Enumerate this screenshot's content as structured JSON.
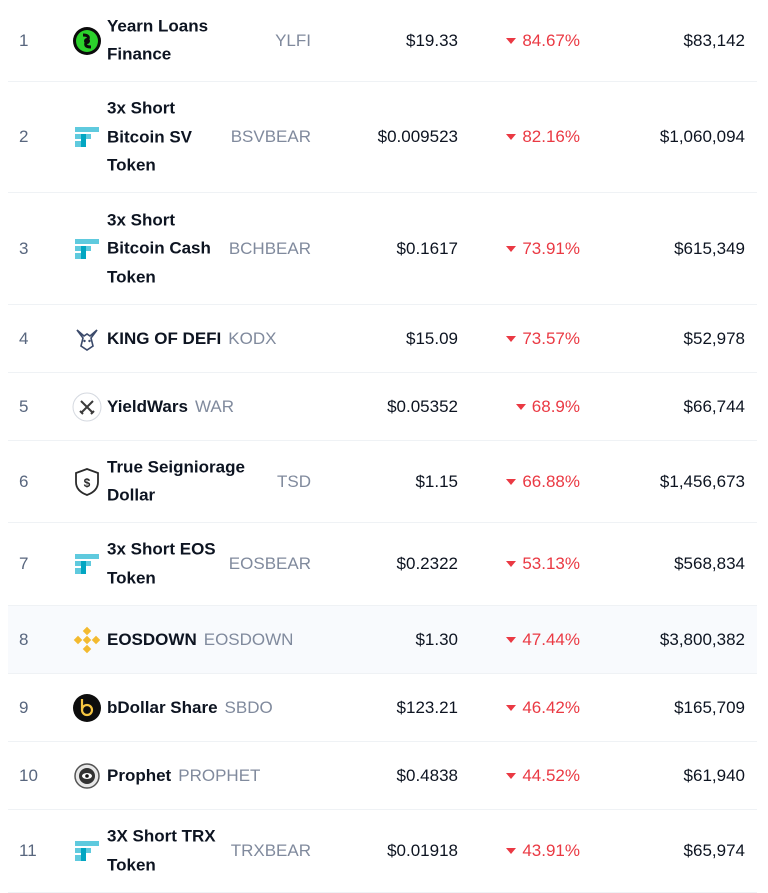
{
  "rows": [
    {
      "rank": "1",
      "name": "Yearn Loans Finance",
      "symbol": "YLFI",
      "price": "$19.33",
      "change": "84.67%",
      "volume": "$83,142",
      "icon": "yearn-loans-icon"
    },
    {
      "rank": "2",
      "name": "3x Short Bitcoin SV Token",
      "symbol": "BSVBEAR",
      "price": "$0.009523",
      "change": "82.16%",
      "volume": "$1,060,094",
      "icon": "ftx-token-icon"
    },
    {
      "rank": "3",
      "name": "3x Short Bitcoin Cash Token",
      "symbol": "BCHBEAR",
      "price": "$0.1617",
      "change": "73.91%",
      "volume": "$615,349",
      "icon": "ftx-token-icon"
    },
    {
      "rank": "4",
      "name": "KING OF DEFI",
      "symbol": "KODX",
      "price": "$15.09",
      "change": "73.57%",
      "volume": "$52,978",
      "icon": "king-of-defi-icon"
    },
    {
      "rank": "5",
      "name": "YieldWars",
      "symbol": "WAR",
      "price": "$0.05352",
      "change": "68.9%",
      "volume": "$66,744",
      "icon": "yieldwars-icon"
    },
    {
      "rank": "6",
      "name": "True Seigniorage Dollar",
      "symbol": "TSD",
      "price": "$1.15",
      "change": "66.88%",
      "volume": "$1,456,673",
      "icon": "tsd-shield-icon"
    },
    {
      "rank": "7",
      "name": "3x Short EOS Token",
      "symbol": "EOSBEAR",
      "price": "$0.2322",
      "change": "53.13%",
      "volume": "$568,834",
      "icon": "ftx-token-icon"
    },
    {
      "rank": "8",
      "name": "EOSDOWN",
      "symbol": "EOSDOWN",
      "price": "$1.30",
      "change": "47.44%",
      "volume": "$3,800,382",
      "icon": "binance-icon"
    },
    {
      "rank": "9",
      "name": "bDollar Share",
      "symbol": "SBDO",
      "price": "$123.21",
      "change": "46.42%",
      "volume": "$165,709",
      "icon": "bdollar-icon"
    },
    {
      "rank": "10",
      "name": "Prophet",
      "symbol": "PROPHET",
      "price": "$0.4838",
      "change": "44.52%",
      "volume": "$61,940",
      "icon": "prophet-icon"
    },
    {
      "rank": "11",
      "name": "3X Short TRX Token",
      "symbol": "TRXBEAR",
      "price": "$0.01918",
      "change": "43.91%",
      "volume": "$65,974",
      "icon": "ftx-token-icon"
    }
  ],
  "colors": {
    "negative": "#ea3943",
    "muted": "#808a9d",
    "rank": "#58667e",
    "highlight_row": "#f8fafd"
  }
}
